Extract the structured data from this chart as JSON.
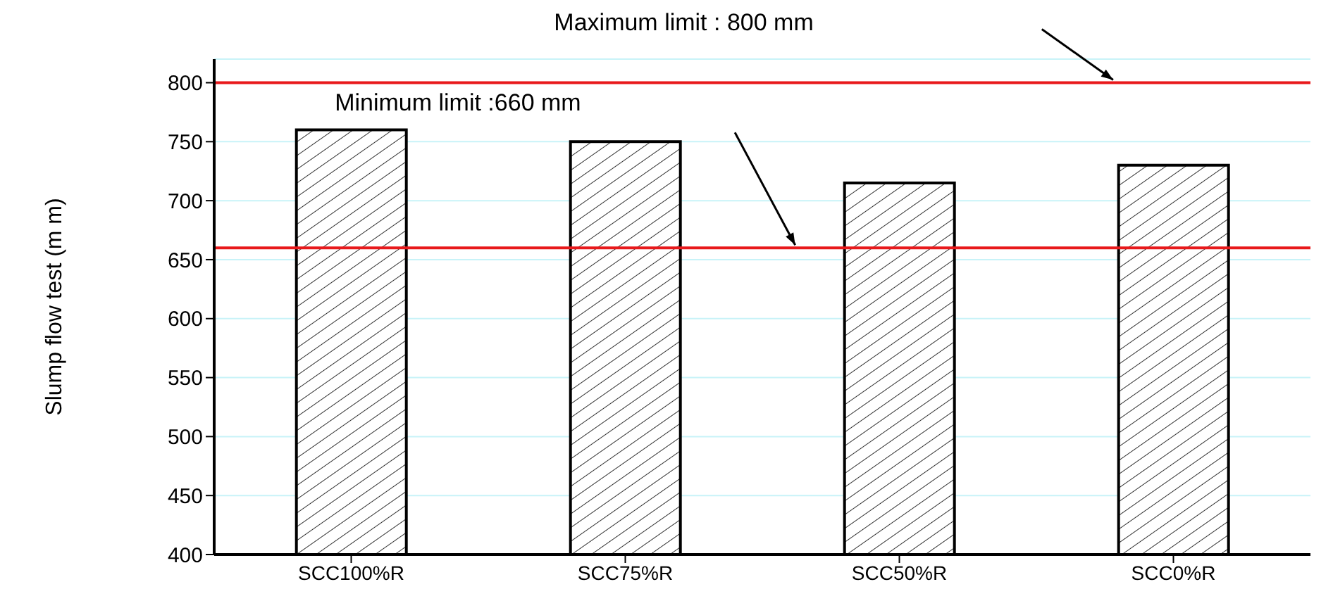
{
  "chart_data": {
    "type": "bar",
    "ylabel": "Slump flow test (m m)",
    "categories": [
      "SCC100%R",
      "SCC75%R",
      "SCC50%R",
      "SCC0%R"
    ],
    "values": [
      760,
      750,
      715,
      730
    ],
    "color": "#000000",
    "ylim": [
      400,
      820
    ],
    "yticks": [
      400,
      450,
      500,
      550,
      600,
      650,
      700,
      750,
      800
    ],
    "grid": "y",
    "annotations": [
      "Maximum limit : 800 mm",
      "Minimum limit :660 mm"
    ],
    "ref_lines": [
      {
        "axis": "y",
        "value": 800,
        "color": "#e8191b"
      },
      {
        "axis": "y",
        "value": 660,
        "color": "#e8191b"
      }
    ]
  }
}
